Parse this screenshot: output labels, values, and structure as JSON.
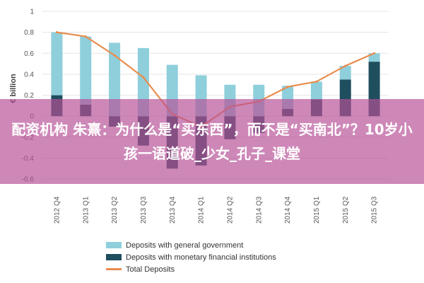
{
  "chart_data": {
    "type": "bar",
    "ylabel": "€ billion",
    "ylim": [
      -0.7,
      1.0
    ],
    "yticks": [
      1,
      0.8,
      0.6,
      0.4,
      0.2,
      0,
      -0.2,
      -0.4,
      -0.6
    ],
    "ytick_labels": [
      "1",
      "0.8",
      "0.6",
      "0.4",
      "0.2",
      "0",
      "-0.2",
      "-0.4",
      "-0.6"
    ],
    "categories": [
      "2012 Q4",
      "2013 Q1",
      "2013 Q2",
      "2013 Q3",
      "2013 Q4",
      "2014 Q1",
      "2014 Q2",
      "2014 Q3",
      "2014 Q4",
      "2015 Q1",
      "2015 Q2",
      "2015 Q3"
    ],
    "series": [
      {
        "name": "Deposits with general government",
        "kind": "bar",
        "color": "#8ecfdb",
        "values": [
          0.6,
          0.65,
          0.7,
          0.65,
          0.49,
          0.39,
          0.3,
          0.3,
          0.22,
          0.17,
          0.13,
          0.08
        ]
      },
      {
        "name": "Deposits with monetary financial institutions",
        "kind": "bar",
        "color": "#1f4e5f",
        "values": [
          0.2,
          0.11,
          -0.1,
          -0.28,
          -0.5,
          -0.47,
          -0.22,
          -0.16,
          0.07,
          0.16,
          0.35,
          0.52
        ]
      },
      {
        "name": "Total Deposits",
        "kind": "line",
        "color": "#e88d4f",
        "values": [
          0.8,
          0.76,
          0.58,
          0.37,
          0.02,
          -0.1,
          0.09,
          0.14,
          0.28,
          0.33,
          0.48,
          0.6
        ]
      }
    ],
    "grid": true,
    "legend_position": "bottom"
  },
  "banner": {
    "text": "配资机构 朱熹：为什么是“买东西”，而不是“买南北”？10岁小孩一语道破_少女_孔子_课堂"
  }
}
